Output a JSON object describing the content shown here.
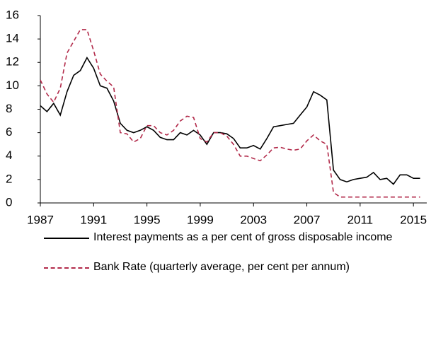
{
  "chart_data": {
    "type": "line",
    "xlim": [
      1987,
      2016
    ],
    "xticks": [
      1987,
      1991,
      1995,
      1999,
      2003,
      2007,
      2011,
      2015
    ],
    "ylim": [
      0,
      16
    ],
    "yticks": [
      0,
      2,
      4,
      6,
      8,
      10,
      12,
      14,
      16
    ],
    "x": [
      1987,
      1987.5,
      1988,
      1988.5,
      1989,
      1989.5,
      1990,
      1990.5,
      1991,
      1991.5,
      1992,
      1992.5,
      1993,
      1993.5,
      1994,
      1994.5,
      1995,
      1995.5,
      1996,
      1996.5,
      1997,
      1997.5,
      1998,
      1998.5,
      1999,
      1999.5,
      2000,
      2000.5,
      2001,
      2001.5,
      2002,
      2002.5,
      2003,
      2003.5,
      2004,
      2004.5,
      2005,
      2005.5,
      2006,
      2006.5,
      2007,
      2007.5,
      2008,
      2008.5,
      2009,
      2009.5,
      2010,
      2010.5,
      2011,
      2011.5,
      2012,
      2012.5,
      2013,
      2013.5,
      2014,
      2014.5,
      2015,
      2015.5
    ],
    "series": [
      {
        "name": "Interest payments as a per cent of gross disposable income",
        "color": "#000000",
        "dash": false,
        "values": [
          8.3,
          7.8,
          8.5,
          7.5,
          9.5,
          10.9,
          11.3,
          12.4,
          11.5,
          10.0,
          9.8,
          8.7,
          6.8,
          6.2,
          6.0,
          6.2,
          6.5,
          6.2,
          5.6,
          5.4,
          5.4,
          6.0,
          5.8,
          6.2,
          5.8,
          5.0,
          6.0,
          6.0,
          5.9,
          5.5,
          4.7,
          4.7,
          4.9,
          4.6,
          5.5,
          6.5,
          6.6,
          6.7,
          6.8,
          7.5,
          8.2,
          9.5,
          9.2,
          8.8,
          2.8,
          2.0,
          1.8,
          2.0,
          2.1,
          2.2,
          2.6,
          2.0,
          2.1,
          1.6,
          2.4,
          2.4,
          2.1,
          2.1
        ]
      },
      {
        "name": "Bank Rate (quarterly average, per cent per annum)",
        "color": "#b22a4a",
        "dash": true,
        "values": [
          10.5,
          9.3,
          8.6,
          9.8,
          12.8,
          13.8,
          14.8,
          14.8,
          13.0,
          11.0,
          10.4,
          9.9,
          6.0,
          5.9,
          5.2,
          5.5,
          6.6,
          6.6,
          6.0,
          5.8,
          6.2,
          7.0,
          7.4,
          7.3,
          5.5,
          5.2,
          6.0,
          6.0,
          5.7,
          5.0,
          4.0,
          4.0,
          3.8,
          3.6,
          4.1,
          4.7,
          4.75,
          4.6,
          4.5,
          4.6,
          5.3,
          5.8,
          5.3,
          5.0,
          0.9,
          0.5,
          0.5,
          0.5,
          0.5,
          0.5,
          0.5,
          0.5,
          0.5,
          0.5,
          0.5,
          0.5,
          0.5,
          0.5
        ]
      }
    ]
  }
}
